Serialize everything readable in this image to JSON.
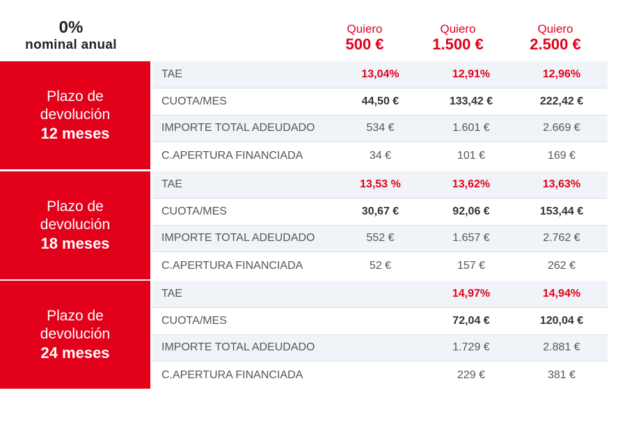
{
  "header": {
    "rate_pct": "0%",
    "rate_label": "nominal anual",
    "amounts": [
      {
        "prefix": "Quiero",
        "amount": "500 €"
      },
      {
        "prefix": "Quiero",
        "amount": "1.500 €"
      },
      {
        "prefix": "Quiero",
        "amount": "2.500 €"
      }
    ]
  },
  "row_labels": {
    "tae": "TAE",
    "cuota": "CUOTA/MES",
    "total": "IMPORTE TOTAL ADEUDADO",
    "apertura": "C.APERTURA FINANCIADA"
  },
  "blocks": [
    {
      "side": {
        "line1": "Plazo de",
        "line2": "devolución",
        "term": "12 meses"
      },
      "tae": [
        "13,04%",
        "12,91%",
        "12,96%"
      ],
      "cuota": [
        "44,50 €",
        "133,42 €",
        "222,42 €"
      ],
      "total": [
        "534 €",
        "1.601 €",
        "2.669 €"
      ],
      "apertura": [
        "34 €",
        "101 €",
        "169 €"
      ]
    },
    {
      "side": {
        "line1": "Plazo de",
        "line2": "devolución",
        "term": "18 meses"
      },
      "tae": [
        "13,53 %",
        "13,62%",
        "13,63%"
      ],
      "cuota": [
        "30,67 €",
        "92,06 €",
        "153,44 €"
      ],
      "total": [
        "552 €",
        "1.657 €",
        "2.762 €"
      ],
      "apertura": [
        "52 €",
        "157 €",
        "262 €"
      ]
    },
    {
      "side": {
        "line1": "Plazo de",
        "line2": "devolución",
        "term": "24 meses"
      },
      "tae": [
        "",
        "14,97%",
        "14,94%"
      ],
      "cuota": [
        "",
        "72,04 €",
        "120,04 €"
      ],
      "total": [
        "",
        "1.729 €",
        "2.881 €"
      ],
      "apertura": [
        "",
        "229 €",
        "381 €"
      ]
    }
  ],
  "colors": {
    "accent": "#e2001a",
    "row_alt": "#f0f4f8",
    "text": "#333333"
  }
}
